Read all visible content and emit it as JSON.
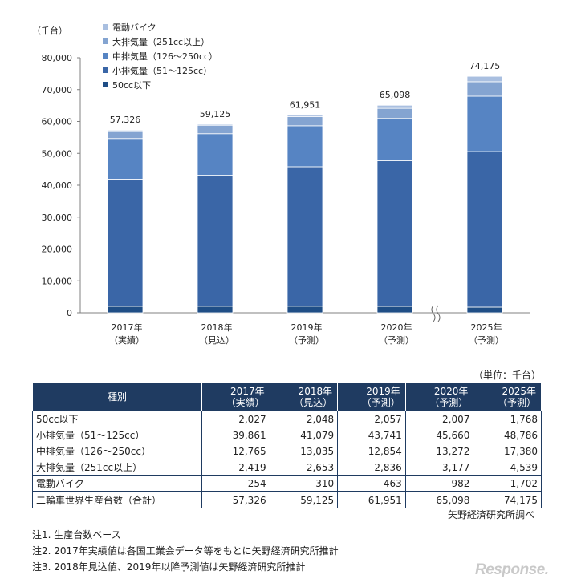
{
  "chart_data": {
    "type": "stacked-bar",
    "unit_label": "（千台）",
    "categories": [
      "2017年（実績）",
      "2018年（見込）",
      "2019年（予測）",
      "2020年（予測）",
      "2025年（予測）"
    ],
    "category_lines": [
      [
        "2017年",
        "（実績）"
      ],
      [
        "2018年",
        "（見込）"
      ],
      [
        "2019年",
        "（予測）"
      ],
      [
        "2020年",
        "（予測）"
      ],
      [
        "2025年",
        "（予測）"
      ]
    ],
    "series": [
      {
        "name": "50cc以下",
        "values": [
          2027,
          2048,
          2057,
          2007,
          1768
        ],
        "color": "#1f4e86"
      },
      {
        "name": "小排気量（51〜125cc）",
        "values": [
          39861,
          41079,
          43741,
          45660,
          48786
        ],
        "color": "#3a66a7"
      },
      {
        "name": "中排気量（126〜250cc）",
        "values": [
          12765,
          13035,
          12854,
          13272,
          17380
        ],
        "color": "#5684c3"
      },
      {
        "name": "大排気量（251cc以上）",
        "values": [
          2419,
          2653,
          2836,
          3177,
          4539
        ],
        "color": "#84a4d1"
      },
      {
        "name": "電動バイク",
        "values": [
          254,
          310,
          463,
          982,
          1702
        ],
        "color": "#a9bfe0"
      }
    ],
    "totals": [
      "57,326",
      "59,125",
      "61,951",
      "65,098",
      "74,175"
    ],
    "ylim": [
      0,
      80000
    ],
    "yticks": [
      0,
      10000,
      20000,
      30000,
      40000,
      50000,
      60000,
      70000,
      80000
    ],
    "ytick_labels": [
      "0",
      "10,000",
      "20,000",
      "30,000",
      "40,000",
      "50,000",
      "60,000",
      "70,000",
      "80,000"
    ],
    "axis_break_after": "2020年（予測）",
    "legend_position": "top-left"
  },
  "table": {
    "unit_note": "（単位：千台）",
    "header_kind": "種別",
    "header_years": [
      [
        "2017年",
        "（実績）"
      ],
      [
        "2018年",
        "（見込）"
      ],
      [
        "2019年",
        "（予測）"
      ],
      [
        "2020年",
        "（予測）"
      ],
      [
        "2025年",
        "（予測）"
      ]
    ],
    "rows": [
      {
        "label": "50cc以下",
        "values": [
          "2,027",
          "2,048",
          "2,057",
          "2,007",
          "1,768"
        ]
      },
      {
        "label": "小排気量（51〜125cc）",
        "values": [
          "39,861",
          "41,079",
          "43,741",
          "45,660",
          "48,786"
        ]
      },
      {
        "label": "中排気量（126〜250cc）",
        "values": [
          "12,765",
          "13,035",
          "12,854",
          "13,272",
          "17,380"
        ]
      },
      {
        "label": "大排気量（251cc以上）",
        "values": [
          "2,419",
          "2,653",
          "2,836",
          "3,177",
          "4,539"
        ]
      },
      {
        "label": "電動バイク",
        "values": [
          "254",
          "310",
          "463",
          "982",
          "1,702"
        ]
      },
      {
        "label": "二輪車世界生産台数（合計）",
        "values": [
          "57,326",
          "59,125",
          "61,951",
          "65,098",
          "74,175"
        ]
      }
    ]
  },
  "source": "矢野経済研究所調べ",
  "notes": [
    "注1. 生産台数ベース",
    "注2. 2017年実績値は各国工業会データ等をもとに矢野経済研究所推計",
    "注3. 2018年見込値、2019年以降予測値は矢野経済研究所推計"
  ],
  "logo_text": "Response."
}
